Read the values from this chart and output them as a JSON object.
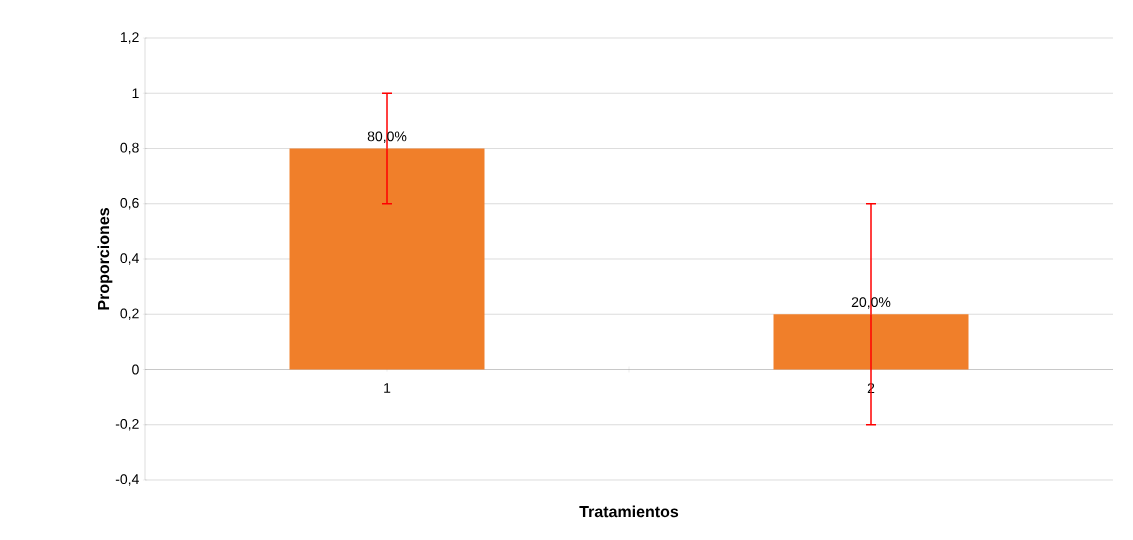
{
  "chart_data": {
    "type": "bar",
    "xlabel": "Tratamientos",
    "ylabel": "Proporciones",
    "categories": [
      "1",
      "2"
    ],
    "values": [
      0.8,
      0.2
    ],
    "errors": [
      0.2,
      0.4
    ],
    "value_labels": [
      "80,0%",
      "20,0%"
    ],
    "color": "#f07f2a",
    "ylim": [
      -0.4,
      1.2
    ],
    "yticks": [
      {
        "value": -0.4,
        "label": "-0,4"
      },
      {
        "value": -0.2,
        "label": "-0,2"
      },
      0,
      {
        "value": 0.2,
        "label": "0,2"
      },
      {
        "value": 0.4,
        "label": "0,4"
      },
      {
        "value": 0.6,
        "label": "0,6"
      },
      {
        "value": 0.8,
        "label": "0,8"
      },
      1,
      {
        "value": 1.2,
        "label": "1,2"
      }
    ],
    "grid": "y"
  }
}
